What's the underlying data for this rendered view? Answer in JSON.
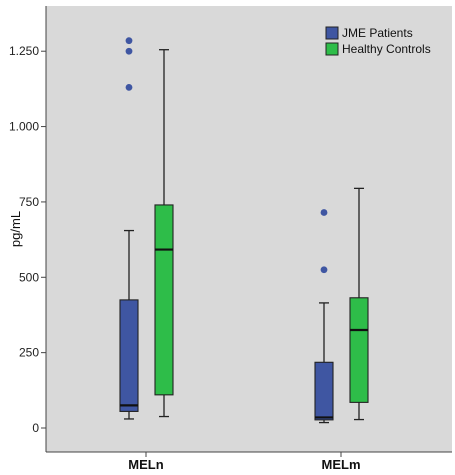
{
  "chart_data": {
    "type": "boxplot",
    "ylabel": "pg/mL",
    "ylim": [
      0,
      1400
    ],
    "yticks": [
      0,
      250,
      500,
      750,
      1000,
      1250
    ],
    "ytick_labels": [
      "0",
      "250",
      "500",
      "750",
      "1.000",
      "1.250"
    ],
    "categories": [
      "MELn",
      "MELm"
    ],
    "legend_position": "top-right",
    "grid": false,
    "colors": {
      "plot_background": "#d9d9d9",
      "box_outline": "#222222",
      "outlier": "#3f56a2"
    },
    "series": [
      {
        "name": "JME Patients",
        "color": "#3f56a2",
        "boxes": [
          {
            "category": "MELn",
            "min": 30,
            "q1": 55,
            "median": 75,
            "q3": 425,
            "max": 655,
            "outliers": [
              1285,
              1250,
              1130
            ]
          },
          {
            "category": "MELm",
            "min": 18,
            "q1": 27,
            "median": 35,
            "q3": 218,
            "max": 415,
            "outliers": [
              715,
              525
            ]
          }
        ]
      },
      {
        "name": "Healthy Controls",
        "color": "#2ebd49",
        "boxes": [
          {
            "category": "MELn",
            "min": 38,
            "q1": 110,
            "median": 592,
            "q3": 740,
            "max": 1255,
            "outliers": []
          },
          {
            "category": "MELm",
            "min": 28,
            "q1": 85,
            "median": 325,
            "q3": 432,
            "max": 795,
            "outliers": []
          }
        ]
      }
    ]
  }
}
